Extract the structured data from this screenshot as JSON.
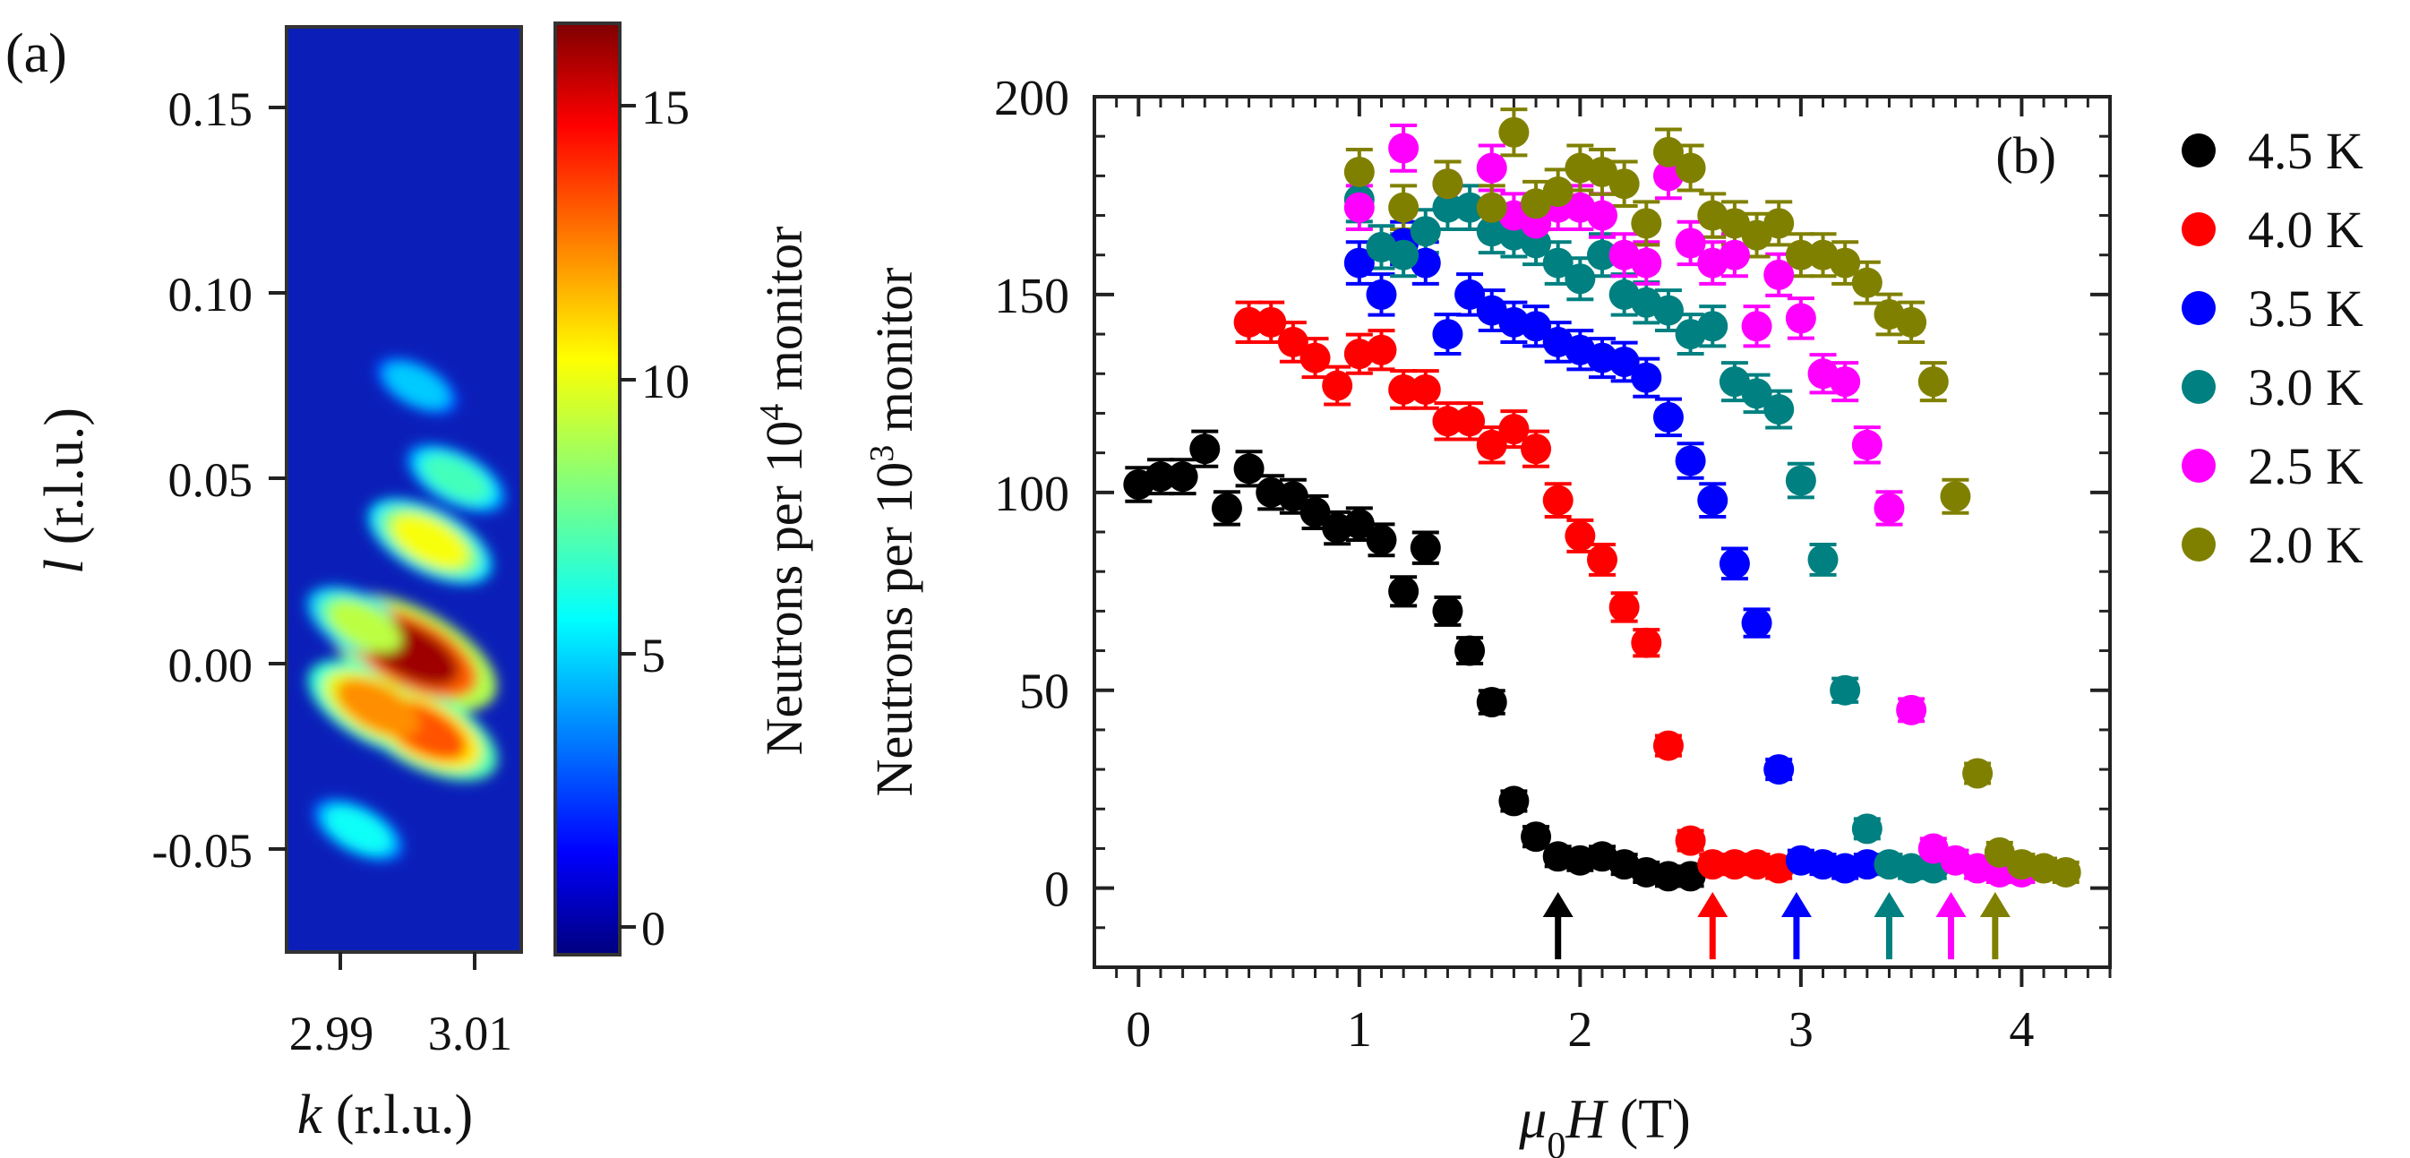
{
  "panel_a": {
    "label": "(a)",
    "xlabel_symbol": "k",
    "xlabel_rest": " (r.l.u.)",
    "ylabel_symbol": "l",
    "ylabel_rest": " (r.l.u.)",
    "xticks": [
      "2.99",
      "3.01"
    ],
    "yticks": [
      "0.15",
      "0.10",
      "0.05",
      "0.00",
      "-0.05"
    ],
    "colorbar_ticks": [
      "0",
      "5",
      "10",
      "15"
    ],
    "colorbar_label_base": "Neutrons per 10",
    "colorbar_label_exp": "4",
    "colorbar_label_tail": " monitor"
  },
  "chart_data": [
    {
      "type": "heatmap",
      "title": "",
      "xlabel": "k (r.l.u.)",
      "ylabel": "l (r.l.u.)",
      "xlim": [
        2.982,
        3.018
      ],
      "ylim": [
        -0.078,
        0.172
      ],
      "colorbar_range": [
        -0.5,
        16.5
      ],
      "colorbar_label": "Neutrons per 10^4 monitor",
      "colormap": "jet",
      "hotspots": [
        {
          "k": 3.001,
          "l": 0.003,
          "value": 16
        },
        {
          "k": 3.003,
          "l": -0.018,
          "value": 13
        },
        {
          "k": 2.996,
          "l": -0.012,
          "value": 12
        },
        {
          "k": 3.004,
          "l": 0.033,
          "value": 10
        },
        {
          "k": 2.994,
          "l": 0.01,
          "value": 9
        },
        {
          "k": 3.008,
          "l": 0.05,
          "value": 7
        },
        {
          "k": 2.993,
          "l": -0.045,
          "value": 6
        },
        {
          "k": 3.002,
          "l": 0.075,
          "value": 5
        }
      ]
    },
    {
      "type": "scatter",
      "title": "",
      "panel_label": "(b)",
      "xlabel": "μ0H (T)",
      "ylabel": "Neutrons per 10^3 monitor",
      "xlim": [
        -0.2,
        4.4
      ],
      "ylim": [
        -20,
        200
      ],
      "xticks": [
        0,
        1,
        2,
        3,
        4
      ],
      "yticks": [
        0,
        50,
        100,
        150,
        200
      ],
      "legend_position": "right",
      "series": [
        {
          "name": "4.5 K",
          "color": "#000000",
          "arrow_x": 1.9,
          "x": [
            0,
            0.1,
            0.2,
            0.3,
            0.4,
            0.5,
            0.6,
            0.7,
            0.8,
            0.9,
            1.0,
            1.1,
            1.2,
            1.3,
            1.4,
            1.5,
            1.6,
            1.7,
            1.8,
            1.9,
            2.0,
            2.1,
            2.2,
            2.3,
            2.4,
            2.5
          ],
          "y": [
            102,
            104,
            104,
            111,
            96,
            106,
            100,
            99,
            95,
            91,
            92,
            88,
            75,
            86,
            70,
            60,
            47,
            22,
            13,
            8,
            7,
            8,
            6,
            4,
            3,
            3
          ]
        },
        {
          "name": "4.0 K",
          "color": "#ff0000",
          "arrow_x": 2.6,
          "x": [
            0.5,
            0.6,
            0.7,
            0.8,
            0.9,
            1.0,
            1.1,
            1.2,
            1.3,
            1.4,
            1.5,
            1.6,
            1.7,
            1.8,
            1.9,
            2.0,
            2.1,
            2.2,
            2.3,
            2.4,
            2.5,
            2.6,
            2.7,
            2.8,
            2.9
          ],
          "y": [
            143,
            143,
            138,
            134,
            127,
            135,
            136,
            126,
            126,
            118,
            118,
            112,
            116,
            111,
            98,
            89,
            83,
            71,
            62,
            36,
            12,
            6,
            6,
            6,
            5
          ]
        },
        {
          "name": "3.5 K",
          "color": "#0000ff",
          "arrow_x": 2.98,
          "x": [
            1.0,
            1.1,
            1.2,
            1.3,
            1.4,
            1.5,
            1.6,
            1.7,
            1.8,
            1.9,
            2.0,
            2.1,
            2.2,
            2.3,
            2.4,
            2.5,
            2.6,
            2.7,
            2.8,
            2.9,
            3.0,
            3.1,
            3.2,
            3.3
          ],
          "y": [
            158,
            150,
            163,
            158,
            140,
            150,
            146,
            143,
            142,
            138,
            136,
            134,
            133,
            129,
            119,
            108,
            98,
            82,
            67,
            30,
            7,
            6,
            5,
            6
          ]
        },
        {
          "name": "3.0 K",
          "color": "#008080",
          "arrow_x": 3.4,
          "x": [
            1.0,
            1.1,
            1.2,
            1.3,
            1.4,
            1.5,
            1.6,
            1.7,
            1.8,
            1.9,
            2.0,
            2.1,
            2.2,
            2.3,
            2.4,
            2.5,
            2.6,
            2.7,
            2.8,
            2.9,
            3.0,
            3.1,
            3.2,
            3.3,
            3.4,
            3.5,
            3.6
          ],
          "y": [
            174,
            162,
            160,
            166,
            172,
            172,
            166,
            165,
            163,
            158,
            154,
            160,
            150,
            148,
            146,
            140,
            142,
            128,
            125,
            121,
            103,
            83,
            50,
            15,
            6,
            5,
            5
          ]
        },
        {
          "name": "2.5 K",
          "color": "#ff00ff",
          "arrow_x": 3.68,
          "x": [
            1.0,
            1.2,
            1.4,
            1.6,
            1.7,
            1.8,
            1.9,
            2.0,
            2.1,
            2.2,
            2.3,
            2.4,
            2.5,
            2.6,
            2.7,
            2.8,
            2.9,
            3.0,
            3.1,
            3.2,
            3.3,
            3.4,
            3.5,
            3.6,
            3.7,
            3.8,
            3.9,
            4.0
          ],
          "y": [
            172,
            187,
            178,
            182,
            170,
            168,
            172,
            172,
            170,
            160,
            158,
            180,
            163,
            158,
            160,
            142,
            155,
            144,
            130,
            128,
            112,
            96,
            45,
            10,
            7,
            5,
            4,
            4
          ]
        },
        {
          "name": "2.0 K",
          "color": "#808000",
          "arrow_x": 3.88,
          "x": [
            1.0,
            1.2,
            1.4,
            1.6,
            1.7,
            1.8,
            1.9,
            2.0,
            2.1,
            2.2,
            2.3,
            2.4,
            2.5,
            2.6,
            2.7,
            2.8,
            2.9,
            3.0,
            3.1,
            3.2,
            3.3,
            3.4,
            3.5,
            3.6,
            3.7,
            3.8,
            3.9,
            4.0,
            4.1,
            4.2
          ],
          "y": [
            181,
            172,
            178,
            172,
            191,
            173,
            176,
            182,
            181,
            178,
            168,
            186,
            182,
            170,
            168,
            165,
            168,
            160,
            160,
            158,
            153,
            145,
            143,
            128,
            99,
            29,
            9,
            6,
            5,
            4
          ]
        }
      ]
    }
  ]
}
